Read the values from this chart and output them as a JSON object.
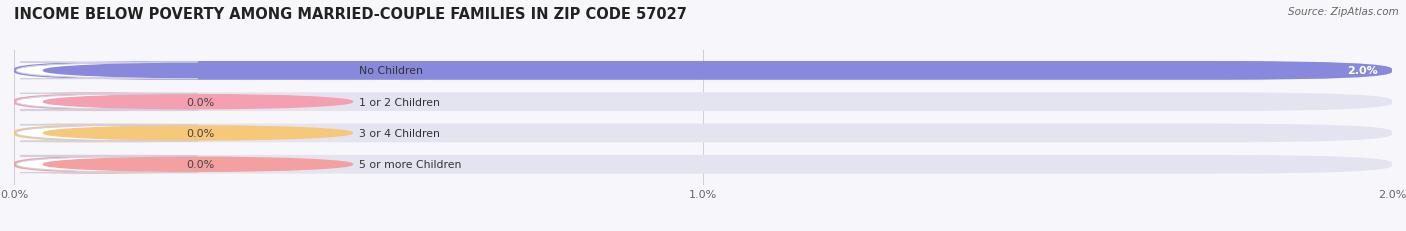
{
  "title": "INCOME BELOW POVERTY AMONG MARRIED-COUPLE FAMILIES IN ZIP CODE 57027",
  "source": "Source: ZipAtlas.com",
  "categories": [
    "No Children",
    "1 or 2 Children",
    "3 or 4 Children",
    "5 or more Children"
  ],
  "values": [
    2.0,
    0.0,
    0.0,
    0.0
  ],
  "bar_colors": [
    "#8888dd",
    "#f4a0b0",
    "#f5c87a",
    "#f4a0a0"
  ],
  "track_color": "#e4e4f0",
  "xlim": [
    0,
    2.0
  ],
  "xticks": [
    0.0,
    1.0,
    2.0
  ],
  "xtick_labels": [
    "0.0%",
    "1.0%",
    "2.0%"
  ],
  "background_color": "#f7f7fb",
  "title_fontsize": 10.5,
  "bar_height": 0.6,
  "figsize": [
    14.06,
    2.32
  ],
  "dpi": 100
}
